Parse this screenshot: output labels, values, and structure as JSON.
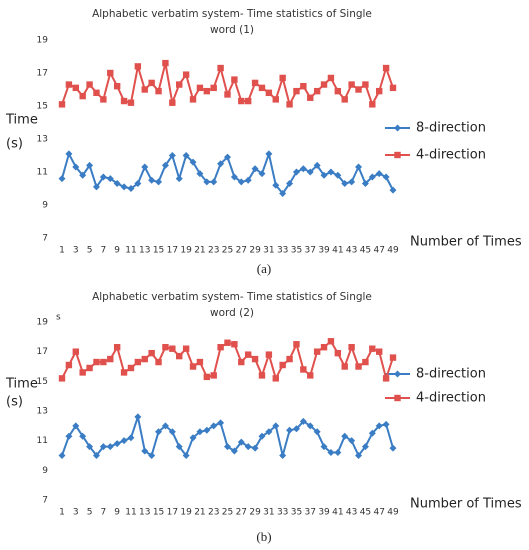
{
  "chart_data": [
    {
      "type": "line",
      "title": [
        "Alphabetic verbatim system- Time statistics of Single",
        "word (1)"
      ],
      "ylabel": [
        "Time",
        "(s)"
      ],
      "xlabel": "Number of Times",
      "caption": "(a)",
      "categories": [
        "1",
        null,
        "3",
        null,
        "5",
        null,
        "7",
        null,
        "9",
        null,
        "11",
        null,
        "13",
        null,
        "15",
        null,
        "17",
        null,
        "19",
        null,
        "21",
        null,
        "23",
        null,
        "25",
        null,
        "27",
        null,
        "29",
        null,
        "31",
        null,
        "33",
        null,
        "35",
        null,
        "37",
        null,
        "39",
        null,
        "41",
        null,
        "43",
        null,
        "45",
        null,
        "47",
        null,
        "49"
      ],
      "ylim": [
        7,
        19
      ],
      "yticks": [
        7,
        9,
        11,
        13,
        15,
        17,
        19
      ],
      "grid": false,
      "series": [
        {
          "name": "8-direction",
          "color": "#3b7dc4",
          "marker": "diamond",
          "values": [
            10.6,
            12.1,
            11.3,
            10.8,
            11.4,
            10.1,
            10.7,
            10.6,
            10.3,
            10.1,
            10.0,
            10.3,
            11.3,
            10.5,
            10.4,
            11.4,
            12.0,
            10.6,
            12.0,
            11.6,
            10.9,
            10.4,
            10.4,
            11.5,
            11.9,
            10.7,
            10.4,
            10.5,
            11.2,
            10.9,
            12.1,
            10.2,
            9.7,
            10.3,
            11.0,
            11.2,
            11.0,
            11.4,
            10.8,
            11.0,
            10.8,
            10.3,
            10.4,
            11.3,
            10.3,
            10.7,
            10.9,
            10.7,
            9.9
          ]
        },
        {
          "name": "4-direction",
          "color": "#e0504c",
          "marker": "square",
          "values": [
            15.1,
            16.3,
            16.1,
            15.6,
            16.3,
            15.8,
            15.4,
            17.0,
            16.2,
            15.3,
            15.2,
            17.4,
            16.0,
            16.4,
            15.9,
            17.6,
            15.2,
            16.3,
            16.9,
            15.4,
            16.1,
            15.9,
            16.1,
            17.3,
            15.7,
            16.6,
            15.3,
            15.3,
            16.4,
            16.1,
            15.8,
            15.4,
            16.7,
            15.1,
            15.9,
            16.2,
            15.5,
            15.9,
            16.3,
            16.7,
            15.9,
            15.4,
            16.3,
            16.0,
            16.3,
            15.1,
            15.9,
            17.3,
            16.1
          ]
        }
      ]
    },
    {
      "type": "line",
      "title": [
        "Alphabetic verbatim system- Time statistics of Single",
        "word (2)"
      ],
      "ylabel": [
        "Time",
        "(s)"
      ],
      "xlabel": "Number of Times",
      "caption": "(b)",
      "annotation": "s",
      "categories": [
        "1",
        null,
        "3",
        null,
        "5",
        null,
        "7",
        null,
        "9",
        null,
        "11",
        null,
        "13",
        null,
        "15",
        null,
        "17",
        null,
        "19",
        null,
        "21",
        null,
        "23",
        null,
        "25",
        null,
        "27",
        null,
        "29",
        null,
        "31",
        null,
        "33",
        null,
        "35",
        null,
        "37",
        null,
        "39",
        null,
        "41",
        null,
        "43",
        null,
        "45",
        null,
        "47",
        null,
        "49"
      ],
      "ylim": [
        7,
        19
      ],
      "yticks": [
        7,
        9,
        11,
        13,
        15,
        17,
        19
      ],
      "grid": false,
      "series": [
        {
          "name": "8-direction",
          "color": "#3b7dc4",
          "marker": "diamond",
          "values": [
            10.0,
            11.3,
            12.0,
            11.3,
            10.6,
            10.0,
            10.6,
            10.6,
            10.8,
            11.0,
            11.2,
            12.6,
            10.3,
            10.0,
            11.6,
            12.0,
            11.6,
            10.6,
            10.0,
            11.2,
            11.6,
            11.7,
            12.0,
            12.2,
            10.6,
            10.3,
            10.9,
            10.6,
            10.5,
            11.3,
            11.6,
            12.0,
            10.0,
            11.7,
            11.8,
            12.3,
            12.0,
            11.6,
            10.6,
            10.2,
            10.2,
            11.3,
            11.0,
            10.0,
            10.6,
            11.5,
            12.0,
            12.1,
            10.5
          ]
        },
        {
          "name": "4-direction",
          "color": "#e0504c",
          "marker": "square",
          "values": [
            15.2,
            16.1,
            17.0,
            15.6,
            15.9,
            16.3,
            16.3,
            16.5,
            17.3,
            15.6,
            15.9,
            16.3,
            16.5,
            16.9,
            16.3,
            17.3,
            17.2,
            16.7,
            17.2,
            16.0,
            16.3,
            15.3,
            15.4,
            17.3,
            17.6,
            17.5,
            16.3,
            16.8,
            16.5,
            15.4,
            16.8,
            15.2,
            16.1,
            16.5,
            17.5,
            15.8,
            15.4,
            17.0,
            17.3,
            17.7,
            16.9,
            16.0,
            17.3,
            16.0,
            16.3,
            17.2,
            17.0,
            15.2,
            16.6
          ]
        }
      ]
    }
  ]
}
